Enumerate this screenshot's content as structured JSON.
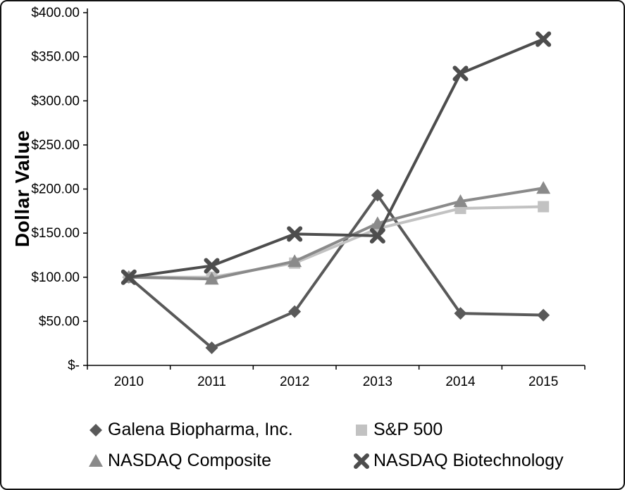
{
  "chart_data": {
    "type": "line",
    "title": "",
    "xlabel": "",
    "ylabel": "Dollar Value",
    "categories": [
      "2010",
      "2011",
      "2012",
      "2013",
      "2014",
      "2015"
    ],
    "ylim": [
      0,
      400
    ],
    "ytick_step": 50,
    "ytick_labels": [
      "$-",
      "$50.00",
      "$100.00",
      "$150.00",
      "$200.00",
      "$250.00",
      "$300.00",
      "$350.00",
      "$400.00"
    ],
    "grid": false,
    "legend_position": "bottom",
    "series": [
      {
        "name": "Galena Biopharma, Inc.",
        "marker": "diamond",
        "color": "#595959",
        "values": [
          100,
          20,
          61,
          193,
          59,
          57
        ]
      },
      {
        "name": "S&P 500",
        "marker": "square",
        "color": "#c2c2c2",
        "values": [
          100,
          100,
          116,
          155,
          178,
          180
        ]
      },
      {
        "name": "NASDAQ Composite",
        "marker": "triangle",
        "color": "#8a8a8a",
        "values": [
          100,
          98,
          118,
          161,
          186,
          201
        ]
      },
      {
        "name": "NASDAQ Biotechnology",
        "marker": "x",
        "color": "#4d4d4d",
        "values": [
          100,
          113,
          149,
          147,
          331,
          370
        ]
      }
    ]
  }
}
